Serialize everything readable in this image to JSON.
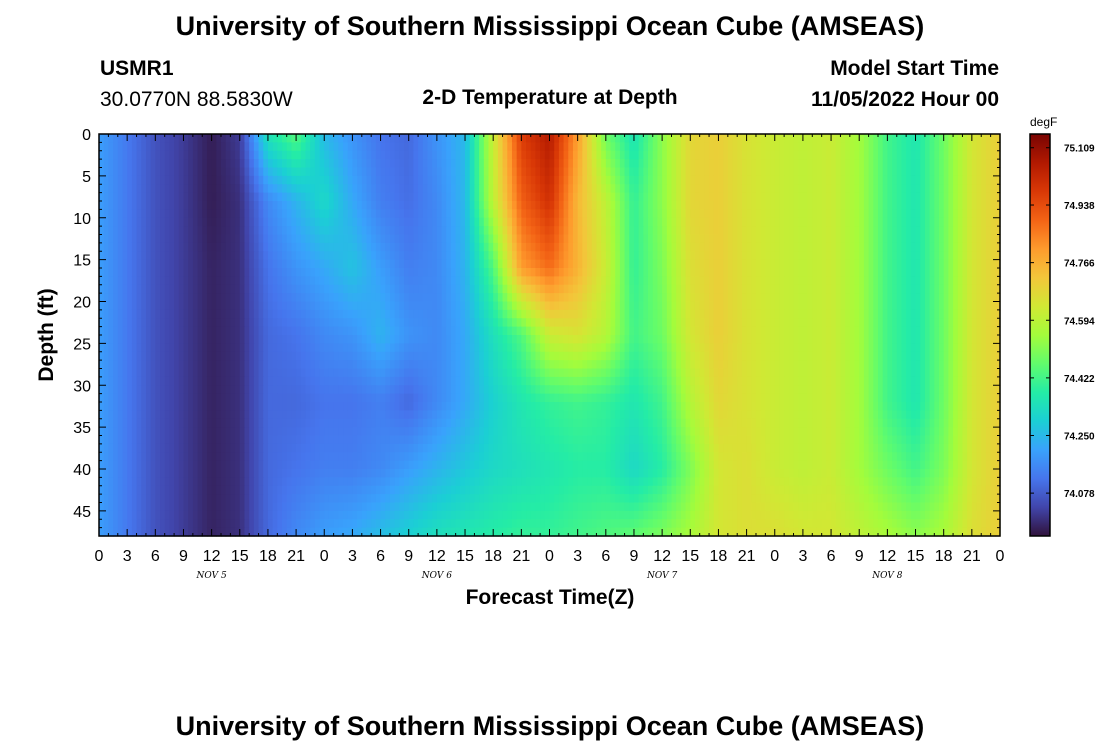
{
  "header": {
    "title": "University of Southern Mississippi Ocean Cube (AMSEAS)",
    "station_id": "USMR1",
    "station_coords": "30.0770N  88.5830W",
    "plot_title": "2-D Temperature at Depth",
    "model_start_label": "Model Start Time",
    "model_start_value": "11/05/2022 Hour 00"
  },
  "footer": {
    "title": "University of Southern Mississippi Ocean Cube (AMSEAS)"
  },
  "chart_data": {
    "type": "heatmap",
    "xlabel": "Forecast Time(Z)",
    "ylabel": "Depth (ft)",
    "x_hours": [
      0,
      3,
      6,
      9,
      12,
      15,
      18,
      21,
      24,
      27,
      30,
      33,
      36,
      39,
      42,
      45,
      48,
      51,
      54,
      57,
      60,
      63,
      66,
      69,
      72,
      75,
      78,
      81,
      84,
      87,
      90,
      93,
      96
    ],
    "x_tick_labels": [
      "0",
      "3",
      "6",
      "9",
      "12",
      "15",
      "18",
      "21",
      "0",
      "3",
      "6",
      "9",
      "12",
      "15",
      "18",
      "21",
      "0",
      "3",
      "6",
      "9",
      "12",
      "15",
      "18",
      "21",
      "0",
      "3",
      "6",
      "9",
      "12",
      "15",
      "18",
      "21",
      "0"
    ],
    "date_labels": [
      {
        "label": "NOV 5",
        "hour": 12
      },
      {
        "label": "NOV 6",
        "hour": 36
      },
      {
        "label": "NOV 7",
        "hour": 60
      },
      {
        "label": "NOV 8",
        "hour": 84
      }
    ],
    "xlim": [
      0,
      96
    ],
    "y_ticks": [
      0,
      5,
      10,
      15,
      20,
      25,
      30,
      35,
      40,
      45
    ],
    "ylim": [
      0,
      48
    ],
    "y_inverted": true,
    "depths_ft": [
      0,
      8,
      16,
      24,
      32,
      40,
      48
    ],
    "values_degF": [
      [
        74.2,
        74.13,
        74.06,
        74.02,
        73.97,
        74.02,
        74.35,
        74.45,
        74.25,
        74.18,
        74.12,
        74.1,
        74.18,
        74.25,
        74.62,
        74.97,
        75.06,
        74.8,
        74.48,
        74.35,
        74.52,
        74.68,
        74.7,
        74.65,
        74.62,
        74.6,
        74.62,
        74.55,
        74.42,
        74.36,
        74.48,
        74.64,
        74.7
      ],
      [
        74.2,
        74.13,
        74.06,
        74.02,
        73.97,
        74.0,
        74.16,
        74.24,
        74.32,
        74.22,
        74.14,
        74.11,
        74.16,
        74.25,
        74.6,
        74.9,
        75.0,
        74.75,
        74.6,
        74.4,
        74.52,
        74.68,
        74.7,
        74.65,
        74.62,
        74.6,
        74.62,
        74.55,
        74.42,
        74.36,
        74.48,
        74.64,
        74.7
      ],
      [
        74.2,
        74.13,
        74.06,
        74.02,
        73.98,
        74.0,
        74.12,
        74.18,
        74.22,
        74.27,
        74.2,
        74.14,
        74.16,
        74.24,
        74.44,
        74.8,
        74.88,
        74.76,
        74.62,
        74.4,
        74.5,
        74.66,
        74.7,
        74.65,
        74.62,
        74.6,
        74.62,
        74.55,
        74.42,
        74.36,
        74.48,
        74.64,
        74.7
      ],
      [
        74.2,
        74.13,
        74.06,
        74.02,
        73.98,
        74.0,
        74.1,
        74.12,
        74.16,
        74.18,
        74.24,
        74.18,
        74.16,
        74.22,
        74.34,
        74.44,
        74.62,
        74.65,
        74.58,
        74.42,
        74.48,
        74.64,
        74.7,
        74.65,
        74.62,
        74.6,
        74.62,
        74.55,
        74.42,
        74.36,
        74.48,
        74.64,
        74.7
      ],
      [
        74.2,
        74.13,
        74.06,
        74.02,
        73.98,
        74.0,
        74.1,
        74.1,
        74.12,
        74.12,
        74.14,
        74.1,
        74.16,
        74.22,
        74.3,
        74.36,
        74.4,
        74.42,
        74.4,
        74.36,
        74.42,
        74.58,
        74.68,
        74.65,
        74.62,
        74.6,
        74.62,
        74.55,
        74.42,
        74.36,
        74.48,
        74.64,
        74.7
      ],
      [
        74.2,
        74.13,
        74.06,
        74.02,
        73.98,
        74.0,
        74.1,
        74.12,
        74.14,
        74.14,
        74.16,
        74.2,
        74.24,
        74.28,
        74.32,
        74.34,
        74.36,
        74.38,
        74.38,
        74.32,
        74.38,
        74.5,
        74.64,
        74.66,
        74.62,
        74.6,
        74.62,
        74.55,
        74.48,
        74.42,
        74.5,
        74.64,
        74.7
      ],
      [
        74.2,
        74.13,
        74.06,
        74.02,
        73.98,
        74.0,
        74.1,
        74.16,
        74.2,
        74.22,
        74.26,
        74.3,
        74.34,
        74.36,
        74.38,
        74.4,
        74.4,
        74.42,
        74.44,
        74.46,
        74.5,
        74.56,
        74.64,
        74.66,
        74.66,
        74.64,
        74.64,
        74.6,
        74.56,
        74.52,
        74.56,
        74.66,
        74.7
      ]
    ],
    "colorbar": {
      "unit": "degF",
      "tick_labels": [
        "75.109",
        "74.938",
        "74.766",
        "74.594",
        "74.422",
        "74.250",
        "74.078"
      ],
      "tick_values": [
        75.109,
        74.938,
        74.766,
        74.594,
        74.422,
        74.25,
        74.078
      ],
      "vmin": 73.95,
      "vmax": 75.15,
      "colors": [
        "#30123b",
        "#4145ab",
        "#4675ed",
        "#39a2fc",
        "#1bcfd4",
        "#24eca6",
        "#61fc6c",
        "#a4fc3b",
        "#d1e834",
        "#f3c63a",
        "#fe9b2d",
        "#f36315",
        "#d93806",
        "#b11901",
        "#7a0402"
      ]
    }
  }
}
